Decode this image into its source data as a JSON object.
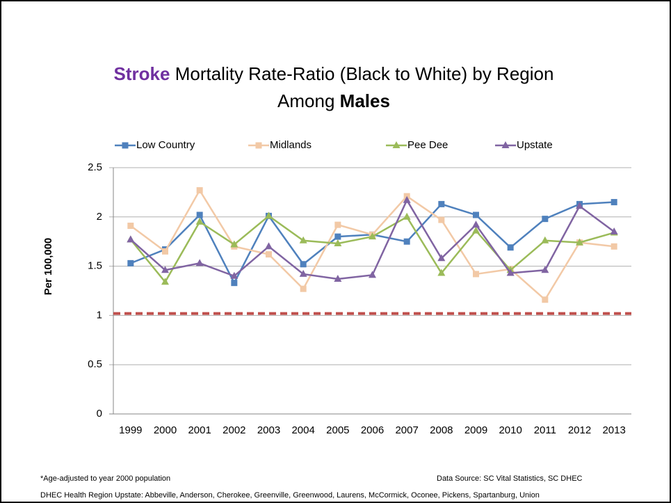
{
  "chart_data": {
    "type": "line",
    "title": [
      "Stroke",
      "Mortality Rate-Ratio (Black to White) by Region",
      "Among",
      "Males"
    ],
    "title_color": "#7030a0",
    "ylabel": "Per 100,000",
    "categories": [
      "1999",
      "2000",
      "2001",
      "2002",
      "2003",
      "2004",
      "2005",
      "2006",
      "2007",
      "2008",
      "2009",
      "2010",
      "2011",
      "2012",
      "2013"
    ],
    "series": [
      {
        "name": "Low Country",
        "color": "#4f81bd",
        "marker": "square",
        "values": [
          1.53,
          1.67,
          2.02,
          1.33,
          2.01,
          1.52,
          1.8,
          1.82,
          1.75,
          2.13,
          2.02,
          1.69,
          1.98,
          2.13,
          2.15
        ]
      },
      {
        "name": "Midlands",
        "color": "#f2c9a6",
        "marker": "square",
        "values": [
          1.91,
          1.65,
          2.27,
          1.7,
          1.62,
          1.27,
          1.92,
          1.82,
          2.21,
          1.97,
          1.42,
          1.47,
          1.16,
          1.74,
          1.7
        ]
      },
      {
        "name": "Pee Dee",
        "color": "#9bbb59",
        "marker": "triangle",
        "values": [
          1.77,
          1.34,
          1.95,
          1.72,
          2.01,
          1.76,
          1.73,
          1.8,
          2.0,
          1.43,
          1.86,
          1.46,
          1.76,
          1.74,
          1.84
        ]
      },
      {
        "name": "Upstate",
        "color": "#8064a2",
        "marker": "triangle",
        "values": [
          1.77,
          1.46,
          1.53,
          1.4,
          1.7,
          1.42,
          1.37,
          1.41,
          2.17,
          1.58,
          1.92,
          1.43,
          1.46,
          2.11,
          1.85
        ]
      }
    ],
    "reference_line": {
      "value": 1.02,
      "color": "#c0504d"
    },
    "ylim": [
      0,
      2.5
    ],
    "yticks": [
      0,
      0.5,
      1,
      1.5,
      2,
      2.5
    ],
    "grid": true,
    "legend": "top",
    "footnote": "*Age-adjusted to year 2000 population",
    "source": "Data Source: SC Vital Statistics, SC DHEC",
    "region_note": "DHEC Health Region Upstate: Abbeville, Anderson, Cherokee, Greenville, Greenwood, Laurens, McCormick, Oconee, Pickens, Spartanburg, Union"
  }
}
